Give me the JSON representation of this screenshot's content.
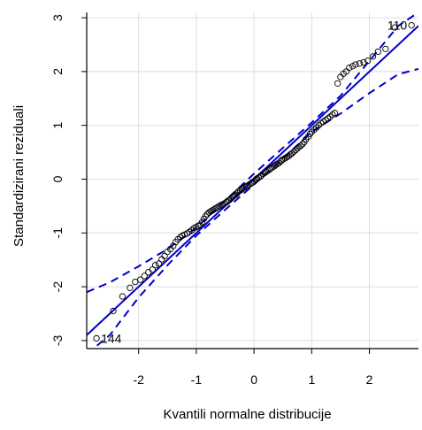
{
  "chart_data": {
    "type": "scatter",
    "title": "",
    "xlabel": "Kvantili normalne distribucije",
    "ylabel": "Standardizirani reziduali",
    "xlim": [
      -2.9,
      2.85
    ],
    "ylim": [
      -3.15,
      3.1
    ],
    "xticks": [
      -2,
      -1,
      0,
      1,
      2
    ],
    "yticks": [
      -3,
      -2,
      -1,
      0,
      1,
      2,
      3
    ],
    "grid": true,
    "colors": {
      "points": "#000000",
      "line": "#0000cc",
      "envelope": "#0000cc",
      "grid": "#dddddd",
      "frame": "#000000"
    },
    "points": [
      [
        -2.73,
        -2.96
      ],
      [
        -2.44,
        -2.45
      ],
      [
        -2.28,
        -2.18
      ],
      [
        -2.15,
        -2.02
      ],
      [
        -2.06,
        -1.91
      ],
      [
        -1.97,
        -1.87
      ],
      [
        -1.9,
        -1.8
      ],
      [
        -1.83,
        -1.73
      ],
      [
        -1.76,
        -1.68
      ],
      [
        -1.71,
        -1.6
      ],
      [
        -1.65,
        -1.57
      ],
      [
        -1.6,
        -1.49
      ],
      [
        -1.55,
        -1.43
      ],
      [
        -1.5,
        -1.35
      ],
      [
        -1.45,
        -1.3
      ],
      [
        -1.4,
        -1.24
      ],
      [
        -1.36,
        -1.17
      ],
      [
        -1.32,
        -1.12
      ],
      [
        -1.28,
        -1.08
      ],
      [
        -1.24,
        -1.05
      ],
      [
        -1.2,
        -1.03
      ],
      [
        -1.16,
        -1.01
      ],
      [
        -1.12,
        -0.98
      ],
      [
        -1.08,
        -0.95
      ],
      [
        -1.04,
        -0.91
      ],
      [
        -1.0,
        -0.89
      ],
      [
        -0.97,
        -0.87
      ],
      [
        -0.94,
        -0.85
      ],
      [
        -0.9,
        -0.8
      ],
      [
        -0.87,
        -0.74
      ],
      [
        -0.84,
        -0.69
      ],
      [
        -0.81,
        -0.65
      ],
      [
        -0.78,
        -0.62
      ],
      [
        -0.75,
        -0.6
      ],
      [
        -0.72,
        -0.58
      ],
      [
        -0.69,
        -0.56
      ],
      [
        -0.66,
        -0.54
      ],
      [
        -0.63,
        -0.52
      ],
      [
        -0.6,
        -0.5
      ],
      [
        -0.57,
        -0.48
      ],
      [
        -0.54,
        -0.47
      ],
      [
        -0.51,
        -0.45
      ],
      [
        -0.48,
        -0.43
      ],
      [
        -0.46,
        -0.41
      ],
      [
        -0.43,
        -0.39
      ],
      [
        -0.4,
        -0.36
      ],
      [
        -0.37,
        -0.33
      ],
      [
        -0.35,
        -0.31
      ],
      [
        -0.32,
        -0.29
      ],
      [
        -0.29,
        -0.26
      ],
      [
        -0.27,
        -0.23
      ],
      [
        -0.24,
        -0.21
      ],
      [
        -0.21,
        -0.19
      ],
      [
        -0.19,
        -0.17
      ],
      [
        -0.16,
        -0.15
      ],
      [
        -0.13,
        -0.13
      ],
      [
        -0.11,
        -0.12
      ],
      [
        -0.08,
        -0.1
      ],
      [
        -0.05,
        -0.08
      ],
      [
        -0.03,
        -0.06
      ],
      [
        0.0,
        -0.04
      ],
      [
        0.03,
        -0.01
      ],
      [
        0.05,
        0.01
      ],
      [
        0.08,
        0.03
      ],
      [
        0.11,
        0.05
      ],
      [
        0.13,
        0.07
      ],
      [
        0.16,
        0.1
      ],
      [
        0.19,
        0.12
      ],
      [
        0.21,
        0.14
      ],
      [
        0.24,
        0.16
      ],
      [
        0.27,
        0.18
      ],
      [
        0.29,
        0.2
      ],
      [
        0.32,
        0.22
      ],
      [
        0.35,
        0.24
      ],
      [
        0.37,
        0.26
      ],
      [
        0.4,
        0.28
      ],
      [
        0.43,
        0.3
      ],
      [
        0.46,
        0.33
      ],
      [
        0.48,
        0.35
      ],
      [
        0.51,
        0.37
      ],
      [
        0.54,
        0.39
      ],
      [
        0.57,
        0.41
      ],
      [
        0.6,
        0.43
      ],
      [
        0.63,
        0.46
      ],
      [
        0.66,
        0.48
      ],
      [
        0.69,
        0.51
      ],
      [
        0.72,
        0.54
      ],
      [
        0.75,
        0.57
      ],
      [
        0.78,
        0.6
      ],
      [
        0.81,
        0.62
      ],
      [
        0.84,
        0.65
      ],
      [
        0.87,
        0.69
      ],
      [
        0.9,
        0.74
      ],
      [
        0.94,
        0.79
      ],
      [
        0.97,
        0.84
      ],
      [
        1.0,
        0.88
      ],
      [
        1.04,
        0.92
      ],
      [
        1.08,
        0.96
      ],
      [
        1.12,
        1.0
      ],
      [
        1.16,
        1.04
      ],
      [
        1.2,
        1.07
      ],
      [
        1.24,
        1.1
      ],
      [
        1.28,
        1.13
      ],
      [
        1.32,
        1.16
      ],
      [
        1.36,
        1.2
      ],
      [
        1.4,
        1.23
      ],
      [
        1.45,
        1.78
      ],
      [
        1.5,
        1.9
      ],
      [
        1.55,
        1.96
      ],
      [
        1.6,
        2.0
      ],
      [
        1.65,
        2.07
      ],
      [
        1.71,
        2.1
      ],
      [
        1.76,
        2.13
      ],
      [
        1.83,
        2.15
      ],
      [
        1.9,
        2.17
      ],
      [
        1.97,
        2.2
      ],
      [
        2.06,
        2.28
      ],
      [
        2.15,
        2.37
      ],
      [
        2.28,
        2.42
      ],
      [
        2.44,
        2.82
      ],
      [
        2.73,
        2.86
      ]
    ],
    "reference_line": {
      "slope": 1.0,
      "intercept": 0.0
    },
    "envelope_upper": [
      [
        -2.9,
        -2.1
      ],
      [
        -2.5,
        -1.92
      ],
      [
        -2.0,
        -1.62
      ],
      [
        -1.5,
        -1.3
      ],
      [
        -1.0,
        -0.9
      ],
      [
        -0.5,
        -0.4
      ],
      [
        0.0,
        0.1
      ],
      [
        0.5,
        0.58
      ],
      [
        1.0,
        1.05
      ],
      [
        1.5,
        1.55
      ],
      [
        2.0,
        2.2
      ],
      [
        2.5,
        2.85
      ],
      [
        2.85,
        3.1
      ]
    ],
    "envelope_lower": [
      [
        -2.9,
        -3.25
      ],
      [
        -2.5,
        -2.9
      ],
      [
        -2.0,
        -2.2
      ],
      [
        -1.5,
        -1.6
      ],
      [
        -1.0,
        -1.05
      ],
      [
        -0.5,
        -0.57
      ],
      [
        0.0,
        -0.1
      ],
      [
        0.5,
        0.38
      ],
      [
        1.0,
        0.88
      ],
      [
        1.5,
        1.22
      ],
      [
        2.0,
        1.6
      ],
      [
        2.5,
        1.95
      ],
      [
        2.85,
        2.05
      ]
    ],
    "labels": [
      {
        "text": "144",
        "x": -2.73,
        "y": -2.96
      },
      {
        "text": "110",
        "x": 2.73,
        "y": 2.86
      }
    ]
  }
}
